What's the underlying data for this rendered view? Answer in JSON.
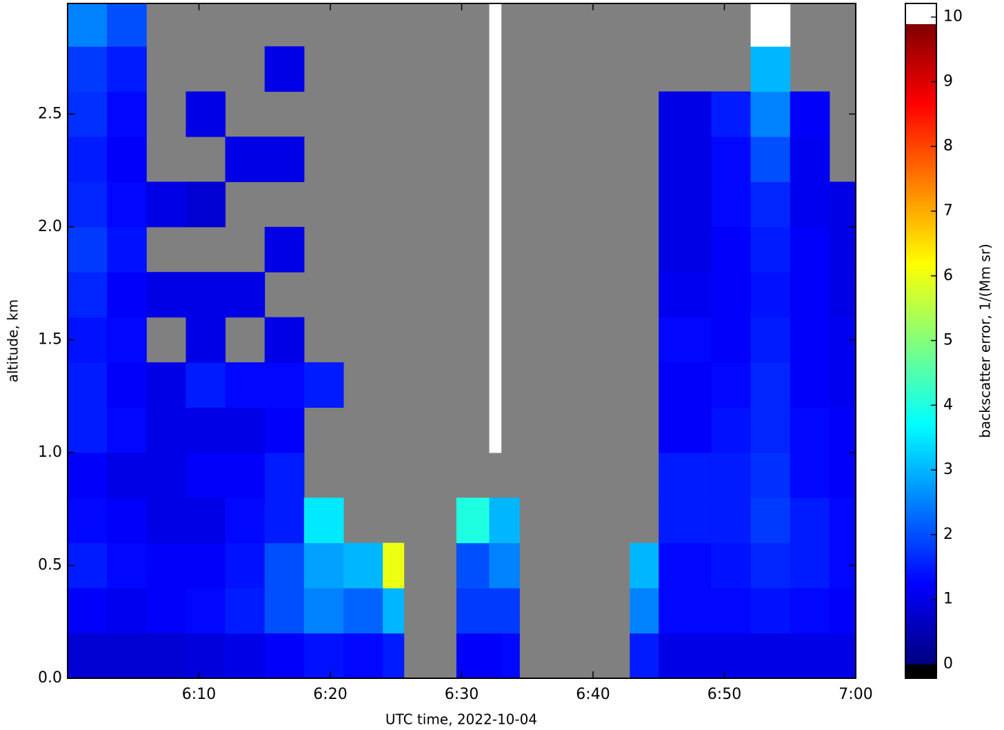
{
  "chart_data": {
    "type": "heatmap",
    "xlabel": "UTC time,  2022-10-04",
    "ylabel": "altitude, km",
    "xlim": [
      360,
      420
    ],
    "xticks": [
      {
        "value": 370,
        "label": "6:10"
      },
      {
        "value": 380,
        "label": "6:20"
      },
      {
        "value": 390,
        "label": "6:30"
      },
      {
        "value": 400,
        "label": "6:40"
      },
      {
        "value": 410,
        "label": "6:50"
      },
      {
        "value": 420,
        "label": "7:00"
      }
    ],
    "ylim": [
      0,
      2.99
    ],
    "yticks": [
      {
        "value": 0,
        "label": "0.0"
      },
      0.5,
      {
        "value": 1,
        "label": "1.0"
      },
      1.5,
      {
        "value": 2,
        "label": "2.0"
      },
      2.5
    ],
    "background": "#808080",
    "x_edges": [
      360,
      363,
      366,
      369,
      372,
      375,
      378,
      381,
      384,
      385.6,
      389.6,
      392.1,
      393.0,
      394.4,
      402.8,
      405,
      409,
      412,
      415,
      418,
      420
    ],
    "y_edges": [
      0,
      0.2,
      0.4,
      0.6,
      0.8,
      1.0,
      1.2,
      1.4,
      1.6,
      1.8,
      2.0,
      2.2,
      2.4,
      2.6,
      2.8,
      3.0
    ],
    "z": [
      [
        0.8,
        0.8,
        0.8,
        0.9,
        1.0,
        1.2,
        1.4,
        1.3,
        1.5,
        null,
        1.2,
        1.2,
        1.3,
        null,
        1.5,
        1.0,
        1.0,
        1.0,
        1.0,
        1.0
      ],
      [
        1.2,
        1.1,
        1.2,
        1.3,
        1.5,
        2.0,
        2.5,
        2.2,
        3.0,
        null,
        1.8,
        1.8,
        1.8,
        null,
        2.5,
        1.3,
        1.3,
        1.4,
        1.3,
        1.2
      ],
      [
        1.5,
        1.3,
        1.2,
        1.2,
        1.4,
        2.0,
        2.8,
        3.0,
        6.0,
        null,
        2.0,
        2.5,
        2.5,
        null,
        3.0,
        1.3,
        1.4,
        1.6,
        1.5,
        1.3
      ],
      [
        1.3,
        1.2,
        1.0,
        1.0,
        1.3,
        1.5,
        3.5,
        null,
        null,
        null,
        4.0,
        3.0,
        3.0,
        null,
        null,
        1.5,
        1.5,
        1.8,
        1.5,
        1.3
      ],
      [
        1.2,
        1.0,
        1.0,
        1.2,
        1.2,
        1.5,
        null,
        null,
        null,
        null,
        null,
        null,
        null,
        null,
        null,
        1.5,
        1.5,
        1.7,
        1.3,
        1.2
      ],
      [
        1.5,
        1.3,
        1.0,
        1.0,
        1.0,
        1.2,
        null,
        null,
        null,
        null,
        null,
        11,
        null,
        null,
        null,
        1.2,
        1.4,
        1.6,
        1.3,
        1.2
      ],
      [
        1.5,
        1.2,
        1.0,
        1.5,
        1.3,
        1.3,
        1.5,
        null,
        null,
        null,
        null,
        11,
        null,
        null,
        null,
        1.2,
        1.3,
        1.6,
        1.2,
        1.1
      ],
      [
        1.4,
        1.3,
        null,
        1.0,
        null,
        1.0,
        null,
        null,
        null,
        null,
        null,
        11,
        null,
        null,
        null,
        1.3,
        1.2,
        1.5,
        1.2,
        1.1
      ],
      [
        1.6,
        1.2,
        1.0,
        1.0,
        1.0,
        null,
        null,
        null,
        null,
        null,
        null,
        11,
        null,
        null,
        null,
        1.1,
        1.2,
        1.4,
        1.2,
        1.0
      ],
      [
        1.8,
        1.4,
        null,
        null,
        null,
        1.0,
        null,
        null,
        null,
        null,
        null,
        11,
        null,
        null,
        null,
        1.0,
        1.2,
        1.5,
        1.2,
        1.0
      ],
      [
        1.6,
        1.3,
        1.0,
        0.8,
        null,
        null,
        null,
        null,
        null,
        null,
        null,
        11,
        null,
        null,
        null,
        1.0,
        1.3,
        1.6,
        1.1,
        1.0
      ],
      [
        1.5,
        1.2,
        null,
        null,
        1.0,
        1.0,
        null,
        null,
        null,
        null,
        null,
        11,
        null,
        null,
        null,
        1.0,
        1.3,
        2.0,
        1.1,
        null
      ],
      [
        1.7,
        1.3,
        null,
        1.0,
        null,
        null,
        null,
        null,
        null,
        null,
        null,
        11,
        null,
        null,
        null,
        1.0,
        1.5,
        2.5,
        1.2,
        null
      ],
      [
        1.8,
        1.5,
        null,
        null,
        null,
        1.0,
        null,
        null,
        null,
        null,
        null,
        11,
        null,
        null,
        null,
        null,
        null,
        3.0,
        null,
        null
      ],
      [
        2.5,
        2.0,
        null,
        null,
        null,
        null,
        null,
        null,
        null,
        null,
        null,
        11,
        null,
        null,
        null,
        null,
        null,
        11,
        null,
        null
      ]
    ],
    "colormap": "jet",
    "norm": [
      0,
      9.9
    ],
    "under_color": "#000000",
    "over_color": "#ffffff",
    "colorbar": {
      "label": "backscatter error, 1/(Mm sr)",
      "lim": [
        -0.22,
        10.21
      ],
      "ticks": [
        0,
        1,
        2,
        3,
        4,
        5,
        6,
        7,
        8,
        9,
        10
      ]
    }
  }
}
